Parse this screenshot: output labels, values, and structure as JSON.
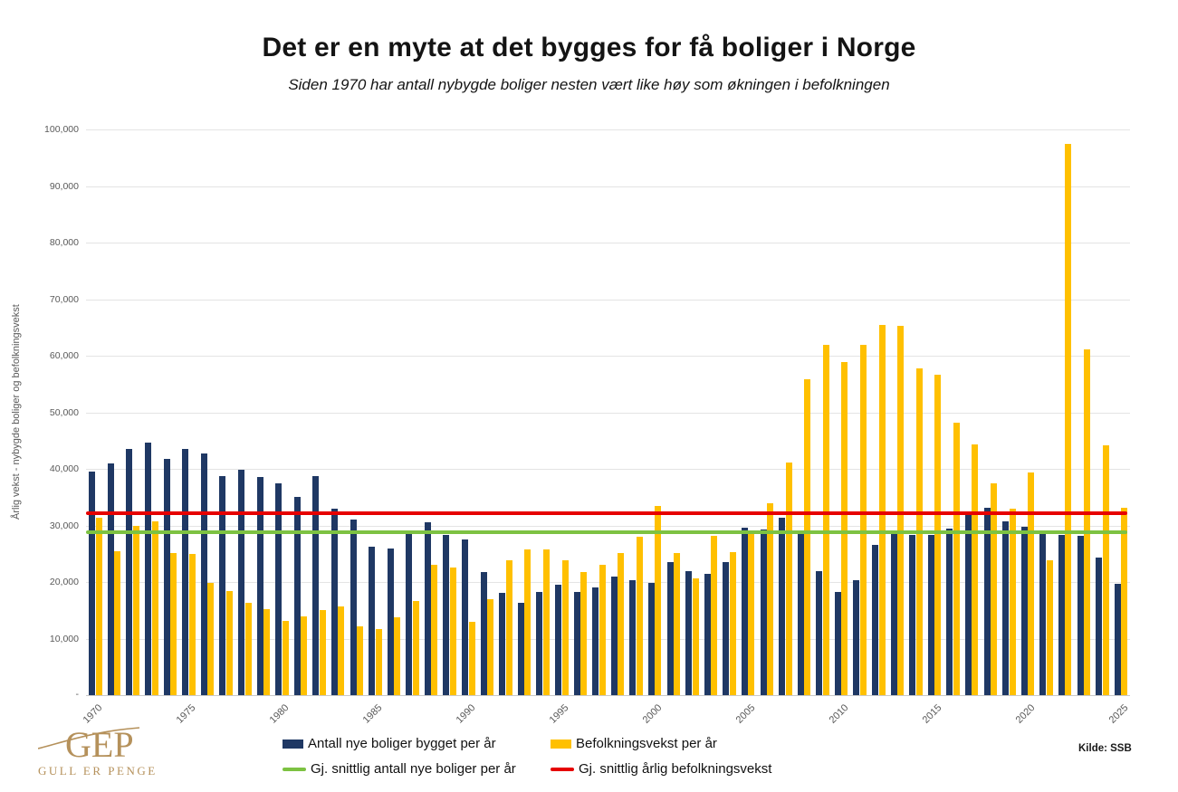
{
  "header": {
    "title": "Det er en myte at det bygges for få boliger i Norge",
    "subtitle": "Siden 1970 har antall nybygde boliger nesten vært like høy som økningen i befolkningen"
  },
  "source_note": "Kilde: SSB",
  "logo": {
    "monogram": "GEP",
    "tagline": "GULL ER PENGER",
    "color": "#b5915b"
  },
  "chart_data": {
    "type": "bar",
    "title": "Det er en myte at det bygges for få boliger i Norge",
    "subtitle": "Siden 1970 har antall nybygde boliger nesten vært like høy som økningen i befolkningen",
    "ylabel": "Årlig vekst - nybygde boliger og befolkningsvekst",
    "xlabel": "",
    "ylim": [
      0,
      100000
    ],
    "grid": true,
    "legend_position": "bottom",
    "y_ticks": [
      100000,
      90000,
      80000,
      70000,
      60000,
      50000,
      40000,
      30000,
      20000,
      10000
    ],
    "y_tick_labels": [
      "100,000",
      "90,000",
      "80,000",
      "70,000",
      "60,000",
      "50,000",
      "40,000",
      "30,000",
      "20,000",
      "10,000"
    ],
    "y_zero_label": "-",
    "x_tick_labels": [
      "1970",
      "1975",
      "1980",
      "1985",
      "1990",
      "1995",
      "2000",
      "2005",
      "2010",
      "2015",
      "2020",
      "2025"
    ],
    "categories": [
      1970,
      1971,
      1972,
      1973,
      1974,
      1975,
      1976,
      1977,
      1978,
      1979,
      1980,
      1981,
      1982,
      1983,
      1984,
      1985,
      1986,
      1987,
      1988,
      1989,
      1990,
      1991,
      1992,
      1993,
      1994,
      1995,
      1996,
      1997,
      1998,
      1999,
      2000,
      2001,
      2002,
      2003,
      2004,
      2005,
      2006,
      2007,
      2008,
      2009,
      2010,
      2011,
      2012,
      2013,
      2014,
      2015,
      2016,
      2017,
      2018,
      2019,
      2020,
      2021,
      2022,
      2023,
      2024,
      2025
    ],
    "series": [
      {
        "name": "Antall nye boliger bygget per år",
        "color": "#1F3864",
        "values": [
          39500,
          41000,
          43600,
          44700,
          41700,
          43600,
          42800,
          38800,
          39900,
          38500,
          37400,
          35100,
          38700,
          32900,
          31100,
          26300,
          25900,
          28700,
          30600,
          28300,
          27500,
          21800,
          18100,
          16400,
          18200,
          19500,
          18200,
          19100,
          21000,
          20400,
          19900,
          23600,
          22000,
          21400,
          23500,
          29600,
          29300,
          31300,
          28600,
          22000,
          18300,
          20400,
          26500,
          28500,
          28300,
          28300,
          29500,
          31800,
          33200,
          30700,
          29800,
          28600,
          28300,
          28100,
          24300,
          19700
        ]
      },
      {
        "name": "Befolkningsvekst per år",
        "color": "#FFC000",
        "values": [
          31400,
          25400,
          29900,
          30700,
          25100,
          24900,
          19800,
          18400,
          16300,
          15200,
          13200,
          14000,
          15000,
          15700,
          12100,
          11700,
          13700,
          16700,
          23000,
          22600,
          12900,
          17000,
          23900,
          25700,
          25800,
          23800,
          21800,
          23000,
          25100,
          28000,
          33400,
          25200,
          20600,
          28100,
          25300,
          28500,
          34000,
          41100,
          55900,
          61900,
          58900,
          62000,
          65400,
          65300,
          57700,
          56700,
          48200,
          44300,
          37400,
          32900,
          39400,
          23900,
          97400,
          61100,
          44200,
          33200
        ]
      }
    ],
    "reference_lines": [
      {
        "name": "Gj. snittlig antall nye boliger per år",
        "color": "#7DC242",
        "value": 28800
      },
      {
        "name": "Gj. snittlig årlig befolkningsvekst",
        "color": "#E60000",
        "value": 32200
      }
    ]
  }
}
